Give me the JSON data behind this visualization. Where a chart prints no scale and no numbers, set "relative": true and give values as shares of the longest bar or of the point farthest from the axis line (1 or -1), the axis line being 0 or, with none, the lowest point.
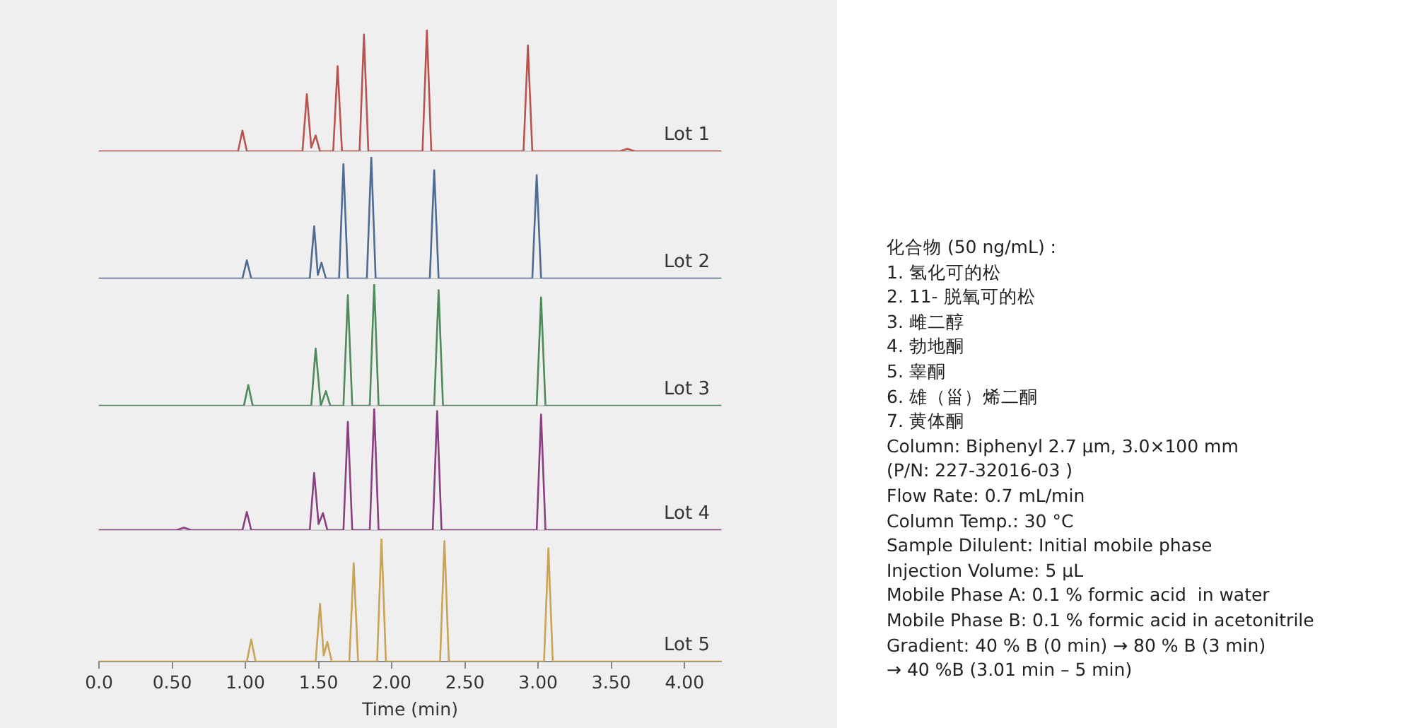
{
  "chart_data": [
    {
      "type": "line",
      "relative": true,
      "xlim": [
        0,
        4.25
      ],
      "tick_labels": false,
      "grid": false,
      "legend": false,
      "marker": "none",
      "series": [
        {
          "name": "Lot 1",
          "color": "#b85450",
          "x": [
            0,
            0.95,
            0.98,
            1.01,
            1.39,
            1.42,
            1.45,
            1.48,
            1.51,
            1.6,
            1.63,
            1.66,
            1.78,
            1.81,
            1.84,
            2.21,
            2.24,
            2.27,
            2.9,
            2.93,
            2.96,
            3.56,
            3.61,
            3.66,
            4.25
          ],
          "values": [
            0,
            0,
            0.17,
            0,
            0,
            0.47,
            0.03,
            0.13,
            0,
            0,
            0.7,
            0,
            0,
            0.96,
            0,
            0,
            1,
            0,
            0,
            0.87,
            0,
            0,
            0.02,
            0,
            0
          ]
        }
      ]
    },
    {
      "type": "line",
      "relative": true,
      "xlim": [
        0,
        4.25
      ],
      "tick_labels": false,
      "grid": false,
      "legend": false,
      "marker": "none",
      "series": [
        {
          "name": "Lot 2",
          "color": "#4e6b93",
          "x": [
            0,
            0.98,
            1.01,
            1.04,
            1.44,
            1.47,
            1.495,
            1.52,
            1.55,
            1.64,
            1.67,
            1.7,
            1.83,
            1.86,
            1.89,
            2.26,
            2.29,
            2.32,
            2.96,
            2.99,
            3.02,
            4.25
          ],
          "values": [
            0,
            0,
            0.15,
            0,
            0,
            0.43,
            0.03,
            0.13,
            0,
            0,
            0.94,
            0,
            0,
            1,
            0,
            0,
            0.89,
            0,
            0,
            0.85,
            0,
            0
          ]
        }
      ]
    },
    {
      "type": "line",
      "relative": true,
      "xlim": [
        0,
        4.25
      ],
      "tick_labels": false,
      "grid": false,
      "legend": false,
      "marker": "none",
      "series": [
        {
          "name": "Lot 3",
          "color": "#4e8a5c",
          "x": [
            0,
            0.99,
            1.02,
            1.05,
            1.45,
            1.48,
            1.515,
            1.55,
            1.58,
            1.67,
            1.7,
            1.73,
            1.85,
            1.88,
            1.91,
            2.29,
            2.32,
            2.35,
            2.99,
            3.02,
            3.05,
            4.25
          ],
          "values": [
            0,
            0,
            0.17,
            0,
            0,
            0.47,
            0,
            0.12,
            0,
            0,
            0.91,
            0,
            0,
            1,
            0,
            0,
            0.95,
            0,
            0,
            0.89,
            0,
            0
          ]
        }
      ]
    },
    {
      "type": "line",
      "relative": true,
      "xlim": [
        0,
        4.25
      ],
      "tick_labels": false,
      "grid": false,
      "legend": false,
      "marker": "none",
      "series": [
        {
          "name": "Lot 4",
          "color": "#8a3f80",
          "x": [
            0,
            0.53,
            0.58,
            0.63,
            0.98,
            1.01,
            1.04,
            1.44,
            1.47,
            1.5,
            1.53,
            1.56,
            1.67,
            1.7,
            1.73,
            1.85,
            1.88,
            1.91,
            2.28,
            2.31,
            2.34,
            2.99,
            3.02,
            3.05,
            4.25
          ],
          "values": [
            0,
            0,
            0.02,
            0,
            0,
            0.15,
            0,
            0,
            0.47,
            0.05,
            0.14,
            0,
            0,
            0.89,
            0,
            0,
            1,
            0,
            0,
            0.98,
            0,
            0,
            0.95,
            0,
            0
          ]
        }
      ]
    },
    {
      "type": "line",
      "relative": true,
      "xlim": [
        0,
        4.25
      ],
      "xlabel": "Time (min)",
      "xticks": [
        {
          "value": 0,
          "label": "0.0"
        },
        {
          "value": 0.5,
          "label": "0.50"
        },
        {
          "value": 1,
          "label": "1.00"
        },
        {
          "value": 1.5,
          "label": "1.50"
        },
        {
          "value": 2,
          "label": "2.00"
        },
        {
          "value": 2.5,
          "label": "2.50"
        },
        {
          "value": 3,
          "label": "3.00"
        },
        {
          "value": 3.5,
          "label": "3.50"
        },
        {
          "value": 4,
          "label": "4.00"
        }
      ],
      "tick_labels": "x",
      "grid": false,
      "legend": false,
      "marker": "none",
      "series": [
        {
          "name": "Lot 5",
          "color": "#c9a356",
          "x": [
            0,
            1.01,
            1.04,
            1.07,
            1.48,
            1.51,
            1.535,
            1.56,
            1.59,
            1.71,
            1.74,
            1.77,
            1.9,
            1.93,
            1.96,
            2.33,
            2.36,
            2.39,
            3.04,
            3.07,
            3.1,
            4.25
          ],
          "values": [
            0,
            0,
            0.18,
            0,
            0,
            0.47,
            0.05,
            0.16,
            0,
            0,
            0.8,
            0,
            0,
            1,
            0,
            0,
            0.98,
            0,
            0,
            0.92,
            0,
            0
          ]
        }
      ]
    },
    {
      "type": "other",
      "annotations": [
        "化合物 (50 ng/mL) :",
        "1. 氢化可的松",
        "2. 11- 脱氧可的松",
        "3. 雌二醇",
        "4. 勃地酮",
        "5. 睾酮",
        "6. 雄（甾）烯二酮",
        "7. 黄体酮",
        "Column: Biphenyl 2.7 µm, 3.0×100 mm",
        "(P/N: 227-32016-03 )",
        "Flow Rate: 0.7 mL/min",
        "Column Temp.: 30 °C",
        "Sample Dilulent: Initial mobile phase",
        "Injection Volume: 5 µL",
        "Mobile Phase A: 0.1 % formic acid  in water",
        "Mobile Phase B: 0.1 % formic acid in acetonitrile",
        "Gradient: 40 % B (0 min) → 80 % B (3 min)",
        "→ 40 %B (3.01 min – 5 min)"
      ]
    }
  ]
}
